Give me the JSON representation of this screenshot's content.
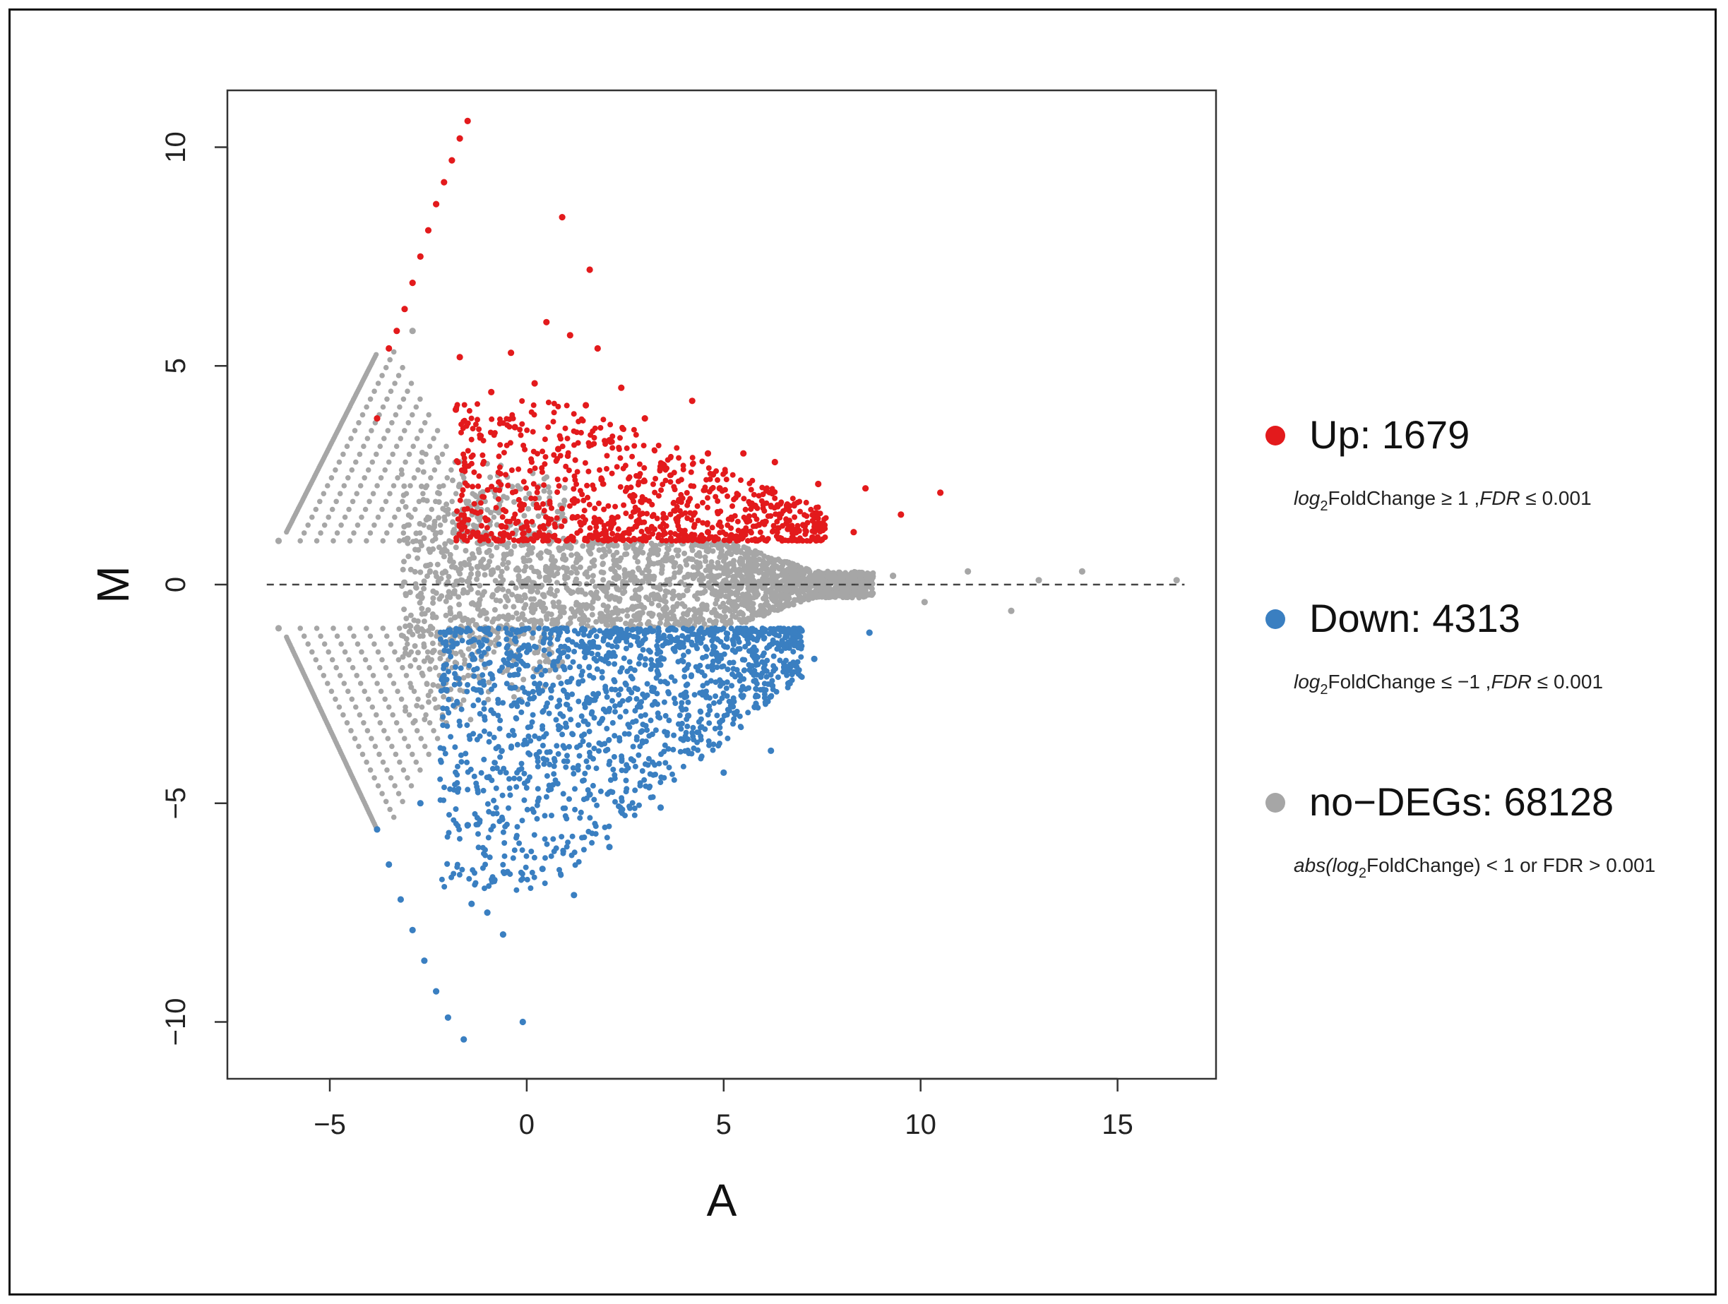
{
  "chart_data": {
    "type": "scatter",
    "title": "",
    "xlabel": "A",
    "ylabel": "M",
    "xlim": [
      -7.6,
      17.5
    ],
    "ylim": [
      -11.3,
      11.3
    ],
    "x_ticks": [
      -5,
      0,
      5,
      10,
      15
    ],
    "x_tick_labels": [
      "−5",
      "0",
      "5",
      "10",
      "15"
    ],
    "y_ticks": [
      -10,
      -5,
      0,
      5,
      10
    ],
    "y_tick_labels": [
      "−10",
      "−5",
      "0",
      "5",
      "10"
    ],
    "reference_line": {
      "y": 0,
      "style": "dashed"
    },
    "grid": false,
    "legend_position": "right",
    "series": [
      {
        "name": "Up: 1679",
        "count": 1679,
        "condition_parts": [
          "log",
          "2",
          "FoldChange ≥ 1 ,",
          "FDR",
          " ≤ 0.001"
        ],
        "color": "#e31a1c",
        "points": [
          [
            -1.5,
            10.6
          ],
          [
            -1.7,
            10.2
          ],
          [
            -1.9,
            9.7
          ],
          [
            -2.1,
            9.2
          ],
          [
            -2.3,
            8.7
          ],
          [
            -2.5,
            8.1
          ],
          [
            -2.7,
            7.5
          ],
          [
            -2.9,
            6.9
          ],
          [
            -3.1,
            6.3
          ],
          [
            -3.3,
            5.8
          ],
          [
            -3.5,
            5.4
          ],
          [
            0.9,
            8.4
          ],
          [
            1.6,
            7.2
          ],
          [
            0.5,
            6.0
          ],
          [
            1.1,
            5.7
          ],
          [
            1.8,
            5.4
          ],
          [
            -1.7,
            5.2
          ],
          [
            -0.4,
            5.3
          ],
          [
            2.4,
            4.5
          ],
          [
            4.2,
            4.2
          ],
          [
            0.2,
            4.6
          ],
          [
            -0.9,
            4.4
          ],
          [
            -1.8,
            4.0
          ],
          [
            1.5,
            4.1
          ],
          [
            3.0,
            3.8
          ],
          [
            4.6,
            3.0
          ],
          [
            5.5,
            3.0
          ],
          [
            6.3,
            2.8
          ],
          [
            7.4,
            2.3
          ],
          [
            8.6,
            2.2
          ],
          [
            10.5,
            2.1
          ],
          [
            9.5,
            1.6
          ],
          [
            8.3,
            1.2
          ],
          [
            7.4,
            1.4
          ],
          [
            -3.8,
            3.8
          ],
          [
            2.1,
            3.3
          ],
          [
            3.4,
            2.7
          ],
          [
            4.9,
            2.2
          ],
          [
            5.8,
            1.8
          ],
          [
            6.6,
            1.4
          ],
          [
            -0.3,
            3.6
          ],
          [
            0.8,
            3.1
          ],
          [
            1.9,
            2.4
          ],
          [
            2.9,
            1.9
          ],
          [
            3.8,
            1.5
          ],
          [
            4.6,
            1.2
          ]
        ]
      },
      {
        "name": "Down: 4313",
        "count": 4313,
        "condition_parts": [
          "log",
          "2",
          "FoldChange ≤ −1 ,",
          "FDR",
          " ≤ 0.001"
        ],
        "color": "#3a7fc1",
        "points": [
          [
            -3.8,
            -5.6
          ],
          [
            -3.5,
            -6.4
          ],
          [
            -3.2,
            -7.2
          ],
          [
            -2.9,
            -7.9
          ],
          [
            -2.6,
            -8.6
          ],
          [
            -2.3,
            -9.3
          ],
          [
            -2.0,
            -9.9
          ],
          [
            -1.6,
            -10.4
          ],
          [
            -1.4,
            -7.3
          ],
          [
            -0.6,
            -8.0
          ],
          [
            -0.1,
            -10.0
          ],
          [
            1.2,
            -7.1
          ],
          [
            -1.0,
            -7.5
          ],
          [
            0.4,
            -6.5
          ],
          [
            2.1,
            -6.0
          ],
          [
            3.4,
            -5.1
          ],
          [
            5.0,
            -4.3
          ],
          [
            6.2,
            -3.8
          ],
          [
            7.3,
            -1.7
          ],
          [
            8.7,
            -1.1
          ],
          [
            -2.7,
            -5.0
          ],
          [
            -1.5,
            -5.5
          ],
          [
            1.6,
            -4.8
          ],
          [
            4.1,
            -3.0
          ],
          [
            5.8,
            -2.2
          ]
        ]
      },
      {
        "name": "no−DEGs: 68128",
        "count": 68128,
        "condition_parts": [
          "abs(log",
          "2",
          "FoldChange) < 1  or FDR > 0.001"
        ],
        "color": "#a6a6a6",
        "points": [
          [
            -6.3,
            1.0
          ],
          [
            -6.3,
            -1.0
          ],
          [
            -2.9,
            5.8
          ],
          [
            12.3,
            -0.6
          ],
          [
            14.1,
            0.3
          ],
          [
            16.5,
            0.1
          ],
          [
            11.2,
            0.3
          ],
          [
            10.1,
            -0.4
          ],
          [
            13.0,
            0.1
          ],
          [
            9.3,
            0.2
          ]
        ]
      }
    ]
  }
}
